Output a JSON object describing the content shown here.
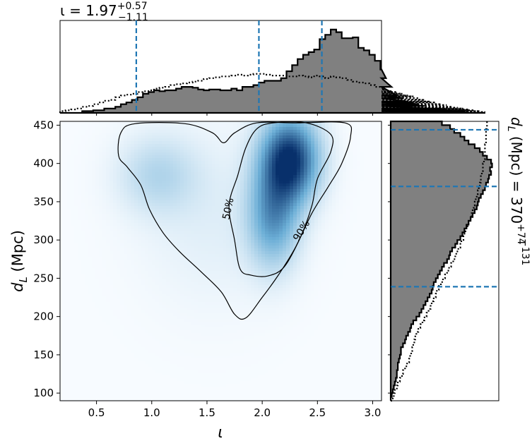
{
  "chart_data": {
    "type": "corner",
    "top_title": {
      "prefix": "ι = ",
      "value": "1.97",
      "sup": "+0.57",
      "sub": "−1.11"
    },
    "right_title": {
      "prefix": "d",
      "sub_var": "L",
      "suffix": " (Mpc) = ",
      "value": "370",
      "sup": "+74",
      "sub": "−131"
    },
    "x_axis": {
      "label": "ι",
      "range": [
        0.17,
        3.08
      ],
      "ticks": [
        0.5,
        1.0,
        1.5,
        2.0,
        2.5,
        3.0
      ],
      "tick_labels": [
        "0.5",
        "1.0",
        "1.5",
        "2.0",
        "2.5",
        "3.0"
      ]
    },
    "y_axis": {
      "label_var": "d",
      "label_sub": "L",
      "label_unit": " (Mpc)",
      "range": [
        90,
        455
      ],
      "ticks": [
        100,
        150,
        200,
        250,
        300,
        350,
        400,
        450
      ],
      "tick_labels": [
        "100",
        "150",
        "200",
        "250",
        "300",
        "350",
        "400",
        "450"
      ]
    },
    "contours": [
      {
        "label": "50%",
        "points": [
          [
            1.8,
            262
          ],
          [
            1.75,
            300
          ],
          [
            1.7,
            345
          ],
          [
            1.78,
            385
          ],
          [
            1.85,
            420
          ],
          [
            1.95,
            445
          ],
          [
            2.1,
            453
          ],
          [
            2.4,
            453
          ],
          [
            2.62,
            438
          ],
          [
            2.62,
            415
          ],
          [
            2.5,
            380
          ],
          [
            2.45,
            345
          ],
          [
            2.35,
            305
          ],
          [
            2.2,
            265
          ],
          [
            2.05,
            253
          ],
          [
            1.9,
            254
          ]
        ]
      },
      {
        "label": "90%",
        "points": [
          [
            0.7,
            410
          ],
          [
            0.72,
            440
          ],
          [
            0.85,
            452
          ],
          [
            1.3,
            452
          ],
          [
            1.55,
            440
          ],
          [
            1.65,
            427
          ],
          [
            1.75,
            440
          ],
          [
            1.95,
            453
          ],
          [
            2.3,
            453
          ],
          [
            2.75,
            453
          ],
          [
            2.8,
            435
          ],
          [
            2.72,
            400
          ],
          [
            2.6,
            370
          ],
          [
            2.45,
            335
          ],
          [
            2.3,
            290
          ],
          [
            2.15,
            255
          ],
          [
            2.0,
            225
          ],
          [
            1.85,
            198
          ],
          [
            1.75,
            203
          ],
          [
            1.63,
            232
          ],
          [
            1.45,
            258
          ],
          [
            1.25,
            285
          ],
          [
            1.1,
            310
          ],
          [
            0.98,
            340
          ],
          [
            0.9,
            372
          ],
          [
            0.78,
            395
          ]
        ]
      }
    ],
    "x_marginal": {
      "bin_edges_start": 0.17,
      "bin_width": 0.05,
      "quantiles": [
        0.86,
        1.97,
        2.54
      ],
      "quantile_color": "#1f77b4",
      "posterior": [
        0.0,
        0.0,
        0.0,
        0.0,
        0.02,
        0.02,
        0.03,
        0.03,
        0.05,
        0.05,
        0.07,
        0.1,
        0.12,
        0.15,
        0.18,
        0.22,
        0.24,
        0.26,
        0.25,
        0.26,
        0.26,
        0.28,
        0.3,
        0.3,
        0.29,
        0.27,
        0.26,
        0.27,
        0.27,
        0.26,
        0.26,
        0.28,
        0.26,
        0.3,
        0.3,
        0.32,
        0.35,
        0.37,
        0.37,
        0.37,
        0.4,
        0.48,
        0.55,
        0.62,
        0.67,
        0.7,
        0.73,
        0.85,
        0.9,
        0.96,
        0.93,
        0.86,
        0.86,
        0.87,
        0.75,
        0.72,
        0.67,
        0.6,
        0.5,
        0.4,
        0.3,
        0.2,
        0.17,
        0.13,
        0.12,
        0.1,
        0.08,
        0.05,
        0.05,
        0.05,
        0.04,
        0.03,
        0.02,
        0.02,
        0.01,
        0.0,
        0.0,
        0.0
      ],
      "prior": [
        0.02,
        0.03,
        0.04,
        0.05,
        0.07,
        0.08,
        0.1,
        0.12,
        0.14,
        0.15,
        0.18,
        0.2,
        0.21,
        0.22,
        0.24,
        0.25,
        0.26,
        0.28,
        0.29,
        0.3,
        0.32,
        0.33,
        0.34,
        0.35,
        0.36,
        0.37,
        0.39,
        0.4,
        0.41,
        0.42,
        0.42,
        0.43,
        0.44,
        0.43,
        0.44,
        0.45,
        0.45,
        0.44,
        0.43,
        0.43,
        0.43,
        0.42,
        0.42,
        0.43,
        0.42,
        0.41,
        0.43,
        0.42,
        0.4,
        0.42,
        0.41,
        0.4,
        0.38,
        0.36,
        0.35,
        0.34,
        0.32,
        0.3,
        0.29,
        0.27,
        0.25,
        0.24,
        0.22,
        0.2,
        0.19,
        0.17,
        0.15,
        0.13,
        0.12,
        0.1,
        0.09,
        0.07,
        0.06,
        0.05,
        0.04,
        0.03,
        0.02,
        0.01
      ]
    },
    "y_marginal": {
      "bin_edges_start": 90,
      "bin_width": 5,
      "quantiles": [
        239,
        370,
        444
      ],
      "quantile_color": "#1f77b4",
      "posterior": [
        0.0,
        0.01,
        0.02,
        0.03,
        0.04,
        0.05,
        0.06,
        0.06,
        0.07,
        0.07,
        0.08,
        0.09,
        0.1,
        0.1,
        0.12,
        0.14,
        0.15,
        0.17,
        0.19,
        0.2,
        0.22,
        0.25,
        0.28,
        0.3,
        0.32,
        0.34,
        0.36,
        0.38,
        0.4,
        0.41,
        0.42,
        0.44,
        0.46,
        0.48,
        0.5,
        0.52,
        0.55,
        0.57,
        0.58,
        0.6,
        0.63,
        0.65,
        0.68,
        0.7,
        0.72,
        0.74,
        0.76,
        0.78,
        0.8,
        0.82,
        0.84,
        0.85,
        0.86,
        0.88,
        0.9,
        0.92,
        0.93,
        0.95,
        0.96,
        0.98,
        0.97,
        0.99,
        0.98,
        0.94,
        0.9,
        0.87,
        0.82,
        0.76,
        0.72,
        0.68,
        0.62,
        0.58,
        0.5,
        0.45
      ],
      "prior": [
        0.02,
        0.03,
        0.04,
        0.06,
        0.07,
        0.09,
        0.11,
        0.12,
        0.14,
        0.16,
        0.18,
        0.19,
        0.2,
        0.21,
        0.22,
        0.23,
        0.24,
        0.25,
        0.27,
        0.29,
        0.31,
        0.33,
        0.35,
        0.37,
        0.39,
        0.4,
        0.42,
        0.44,
        0.45,
        0.47,
        0.49,
        0.51,
        0.53,
        0.55,
        0.57,
        0.59,
        0.61,
        0.63,
        0.64,
        0.66,
        0.68,
        0.69,
        0.71,
        0.72,
        0.73,
        0.75,
        0.76,
        0.78,
        0.79,
        0.8,
        0.81,
        0.82,
        0.83,
        0.84,
        0.85,
        0.86,
        0.87,
        0.88,
        0.88,
        0.89,
        0.9,
        0.9,
        0.91,
        0.92,
        0.92,
        0.92,
        0.92,
        0.93,
        0.93,
        0.93,
        0.93,
        0.94,
        0.94,
        0.94
      ]
    },
    "density_blobs": [
      {
        "x": 2.25,
        "y": 405,
        "sx": 0.18,
        "sy": 38,
        "w": 1.0
      },
      {
        "x": 2.1,
        "y": 330,
        "sx": 0.16,
        "sy": 45,
        "w": 0.55
      },
      {
        "x": 1.05,
        "y": 385,
        "sx": 0.25,
        "sy": 35,
        "w": 0.22
      },
      {
        "x": 1.55,
        "y": 330,
        "sx": 0.45,
        "sy": 80,
        "w": 0.08
      }
    ],
    "colors": {
      "hist_fill": "#808080",
      "hist_edge": "#000000",
      "density_max": "#08306b",
      "density_min": "#f7fbff",
      "contour": "#000000"
    }
  }
}
